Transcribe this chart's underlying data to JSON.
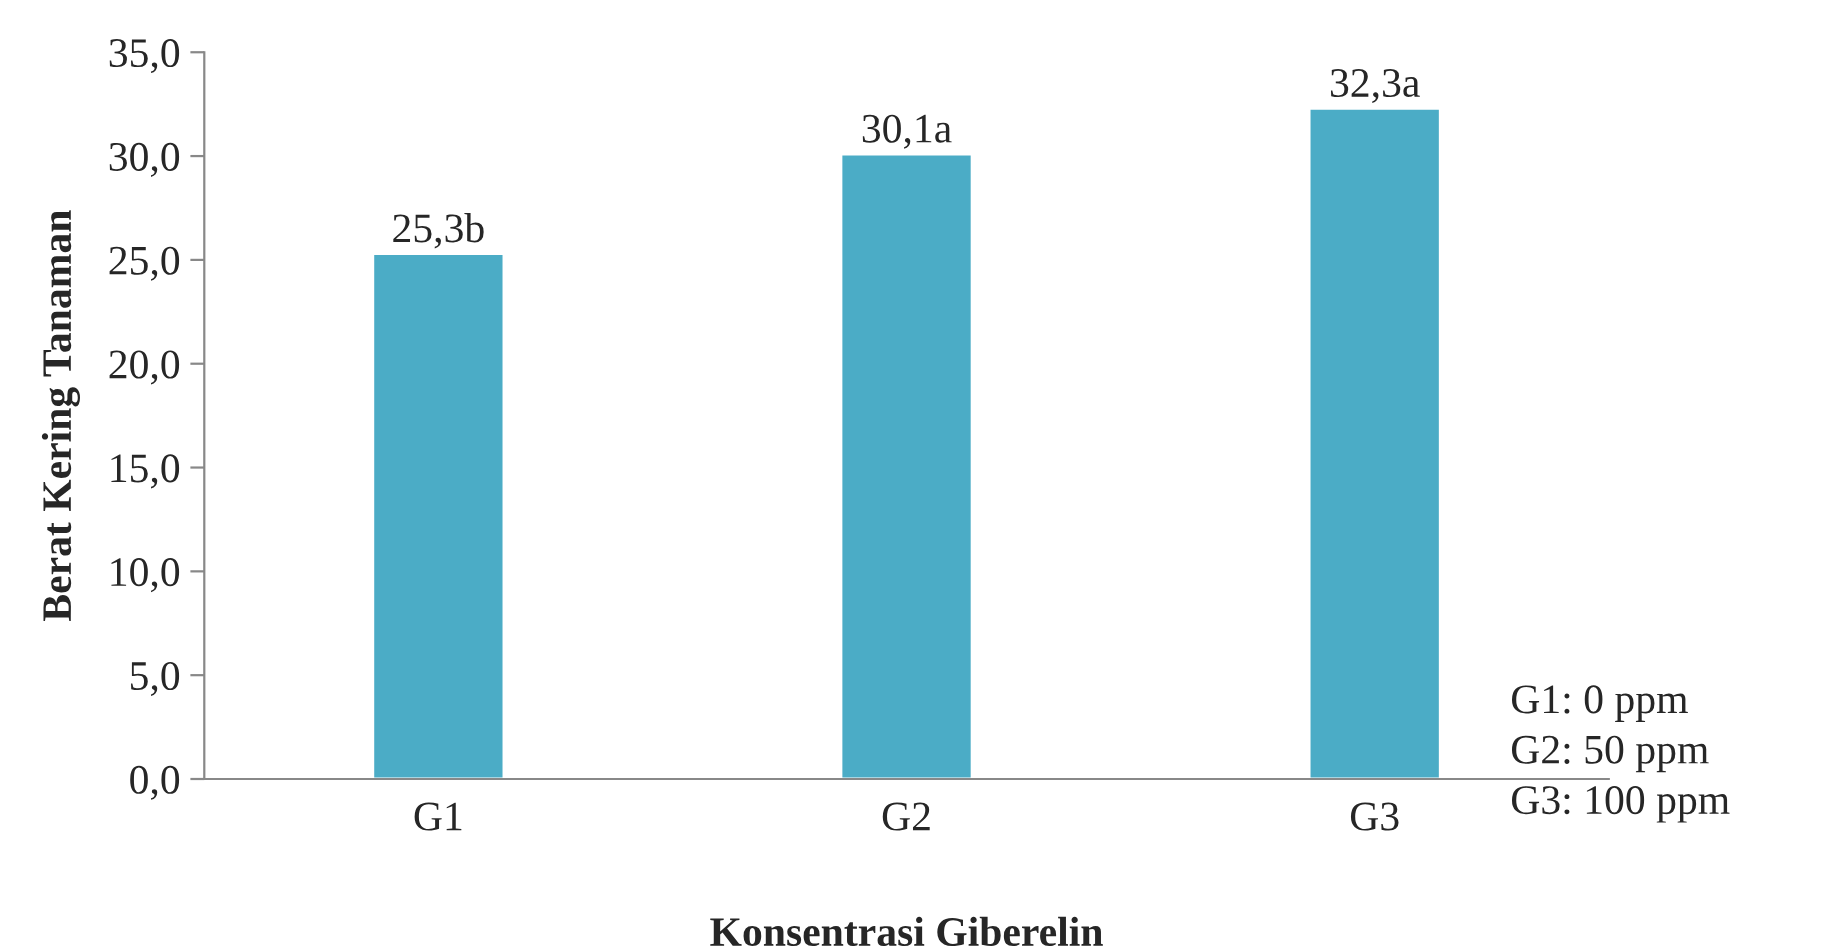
{
  "chart_data": {
    "type": "bar",
    "xlabel": "Konsentrasi Giberelin",
    "ylabel": "Berat Kering Tanaman",
    "categories": [
      "G1",
      "G2",
      "G3"
    ],
    "values": [
      25.3,
      30.1,
      32.3
    ],
    "value_labels": [
      "25,3b",
      "30,1a",
      "32,3a"
    ],
    "color": "#4bacc6",
    "ylim": [
      0,
      35
    ],
    "yticks": [
      {
        "value": 0,
        "label": "0,0"
      },
      {
        "value": 5,
        "label": "5,0"
      },
      {
        "value": 10,
        "label": "10,0"
      },
      {
        "value": 15,
        "label": "15,0"
      },
      {
        "value": 20,
        "label": "20,0"
      },
      {
        "value": 25,
        "label": "25,0"
      },
      {
        "value": 30,
        "label": "30,0"
      },
      {
        "value": 35,
        "label": "35,0"
      }
    ],
    "grid": false,
    "annotations": [
      "G1: 0 ppm",
      "G2: 50 ppm",
      "G3: 100 ppm"
    ]
  }
}
